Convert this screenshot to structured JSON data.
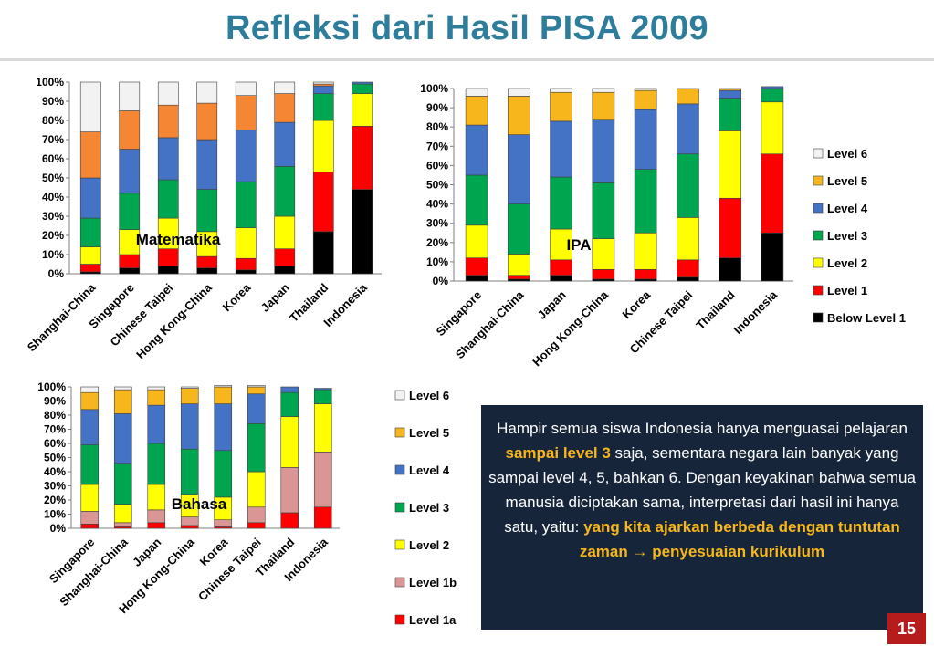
{
  "slide": {
    "title": "Refleksi dari Hasil PISA 2009",
    "page_number": "15"
  },
  "textbox": {
    "p1": "Hampir semua siswa Indonesia hanya menguasai pelajaran ",
    "h1": "sampai level 3",
    "p2": " saja, sementara negara lain banyak yang sampai level 4, 5, bahkan 6. Dengan keyakinan bahwa semua manusia diciptakan sama, interpretasi dari hasil ini hanya satu, yaitu: ",
    "h2": "yang kita ajarkan berbeda dengan tuntutan zaman ",
    "arrow": "→",
    "h3": " penyesuaian kurikulum"
  },
  "chart_data": [
    {
      "type": "bar",
      "stacked": true,
      "overlay_label": "Matematika",
      "ylim": [
        0,
        100
      ],
      "yticks": [
        "0%",
        "10%",
        "20%",
        "30%",
        "40%",
        "50%",
        "60%",
        "70%",
        "80%",
        "90%",
        "100%"
      ],
      "grid": false,
      "categories": [
        "Shanghai-China",
        "Singapore",
        "Chinese Taipei",
        "Hong Kong-China",
        "Korea",
        "Japan",
        "Thailand",
        "Indonesia"
      ],
      "series": [
        {
          "name": "Below Level 1",
          "color": "#000000",
          "values": [
            1,
            3,
            4,
            3,
            2,
            4,
            22,
            44
          ]
        },
        {
          "name": "Level 1",
          "color": "#ff0000",
          "values": [
            4,
            7,
            9,
            6,
            6,
            9,
            31,
            33
          ]
        },
        {
          "name": "Level 2",
          "color": "#ffff00",
          "values": [
            9,
            13,
            16,
            13,
            16,
            17,
            27,
            17
          ]
        },
        {
          "name": "Level 3",
          "color": "#00a550",
          "values": [
            15,
            19,
            20,
            22,
            24,
            26,
            14,
            5
          ]
        },
        {
          "name": "Level 4",
          "color": "#4472c4",
          "values": [
            21,
            23,
            22,
            26,
            27,
            23,
            4,
            1
          ]
        },
        {
          "name": "Level 5",
          "color": "#f58634",
          "values": [
            24,
            20,
            17,
            19,
            18,
            15,
            1,
            0
          ]
        },
        {
          "name": "Level 6",
          "color": "#f2f2f2",
          "values": [
            26,
            15,
            12,
            11,
            7,
            6,
            1,
            0
          ]
        }
      ]
    },
    {
      "type": "bar",
      "stacked": true,
      "overlay_label": "IPA",
      "ylim": [
        0,
        100
      ],
      "yticks": [
        "0%",
        "10%",
        "20%",
        "30%",
        "40%",
        "50%",
        "60%",
        "70%",
        "80%",
        "90%",
        "100%"
      ],
      "grid": false,
      "legend_position": "right",
      "legend": [
        "Level 6",
        "Level 5",
        "Level 4",
        "Level 3",
        "Level 2",
        "Level 1",
        "Below Level 1"
      ],
      "categories": [
        "Singapore",
        "Shanghai-China",
        "Japan",
        "Hong Kong-China",
        "Korea",
        "Chinese Taipei",
        "Thailand",
        "Indonesia"
      ],
      "series": [
        {
          "name": "Below Level 1",
          "color": "#000000",
          "values": [
            3,
            1,
            3,
            1,
            1,
            2,
            12,
            25
          ]
        },
        {
          "name": "Level 1",
          "color": "#ff0000",
          "values": [
            9,
            2,
            8,
            5,
            5,
            9,
            31,
            41
          ]
        },
        {
          "name": "Level 2",
          "color": "#ffff00",
          "values": [
            17,
            11,
            16,
            16,
            19,
            22,
            35,
            27
          ]
        },
        {
          "name": "Level 3",
          "color": "#00a550",
          "values": [
            26,
            26,
            27,
            29,
            33,
            33,
            17,
            7
          ]
        },
        {
          "name": "Level 4",
          "color": "#4472c4",
          "values": [
            26,
            36,
            29,
            33,
            31,
            26,
            4,
            1
          ]
        },
        {
          "name": "Level 5",
          "color": "#f6b61c",
          "values": [
            15,
            20,
            15,
            14,
            10,
            8,
            1,
            0
          ]
        },
        {
          "name": "Level 6",
          "color": "#f2f2f2",
          "values": [
            4,
            4,
            2,
            2,
            1,
            0,
            0,
            0
          ]
        }
      ]
    },
    {
      "type": "bar",
      "stacked": true,
      "overlay_label": "Bahasa",
      "ylim": [
        0,
        100
      ],
      "yticks": [
        "0%",
        "10%",
        "20%",
        "30%",
        "40%",
        "50%",
        "60%",
        "70%",
        "80%",
        "90%",
        "100%"
      ],
      "grid": false,
      "legend_position": "right",
      "legend": [
        "Level 6",
        "Level 5",
        "Level 4",
        "Level 3",
        "Level 2",
        "Level 1b",
        "Level 1a"
      ],
      "categories": [
        "Singapore",
        "Shanghai-China",
        "Japan",
        "Hong Kong-China",
        "Korea",
        "Chinese Taipei",
        "Thailand",
        "Indonesia"
      ],
      "series": [
        {
          "name": "Level 1a",
          "color": "#ff0000",
          "values": [
            3,
            1,
            4,
            2,
            1,
            4,
            11,
            15
          ]
        },
        {
          "name": "Level 1b",
          "color": "#d99694",
          "values": [
            9,
            3,
            9,
            6,
            5,
            11,
            32,
            39
          ]
        },
        {
          "name": "Level 2",
          "color": "#ffff00",
          "values": [
            19,
            13,
            18,
            16,
            16,
            25,
            36,
            34
          ]
        },
        {
          "name": "Level 3",
          "color": "#00a550",
          "values": [
            28,
            29,
            29,
            32,
            33,
            34,
            17,
            10
          ]
        },
        {
          "name": "Level 4",
          "color": "#4472c4",
          "values": [
            25,
            35,
            27,
            32,
            33,
            21,
            4,
            1
          ]
        },
        {
          "name": "Level 5",
          "color": "#f6b61c",
          "values": [
            12,
            17,
            11,
            11,
            12,
            5,
            0,
            0
          ]
        },
        {
          "name": "Level 6",
          "color": "#f2f2f2",
          "values": [
            4,
            2,
            2,
            1,
            1,
            1,
            0,
            0
          ]
        }
      ]
    }
  ]
}
